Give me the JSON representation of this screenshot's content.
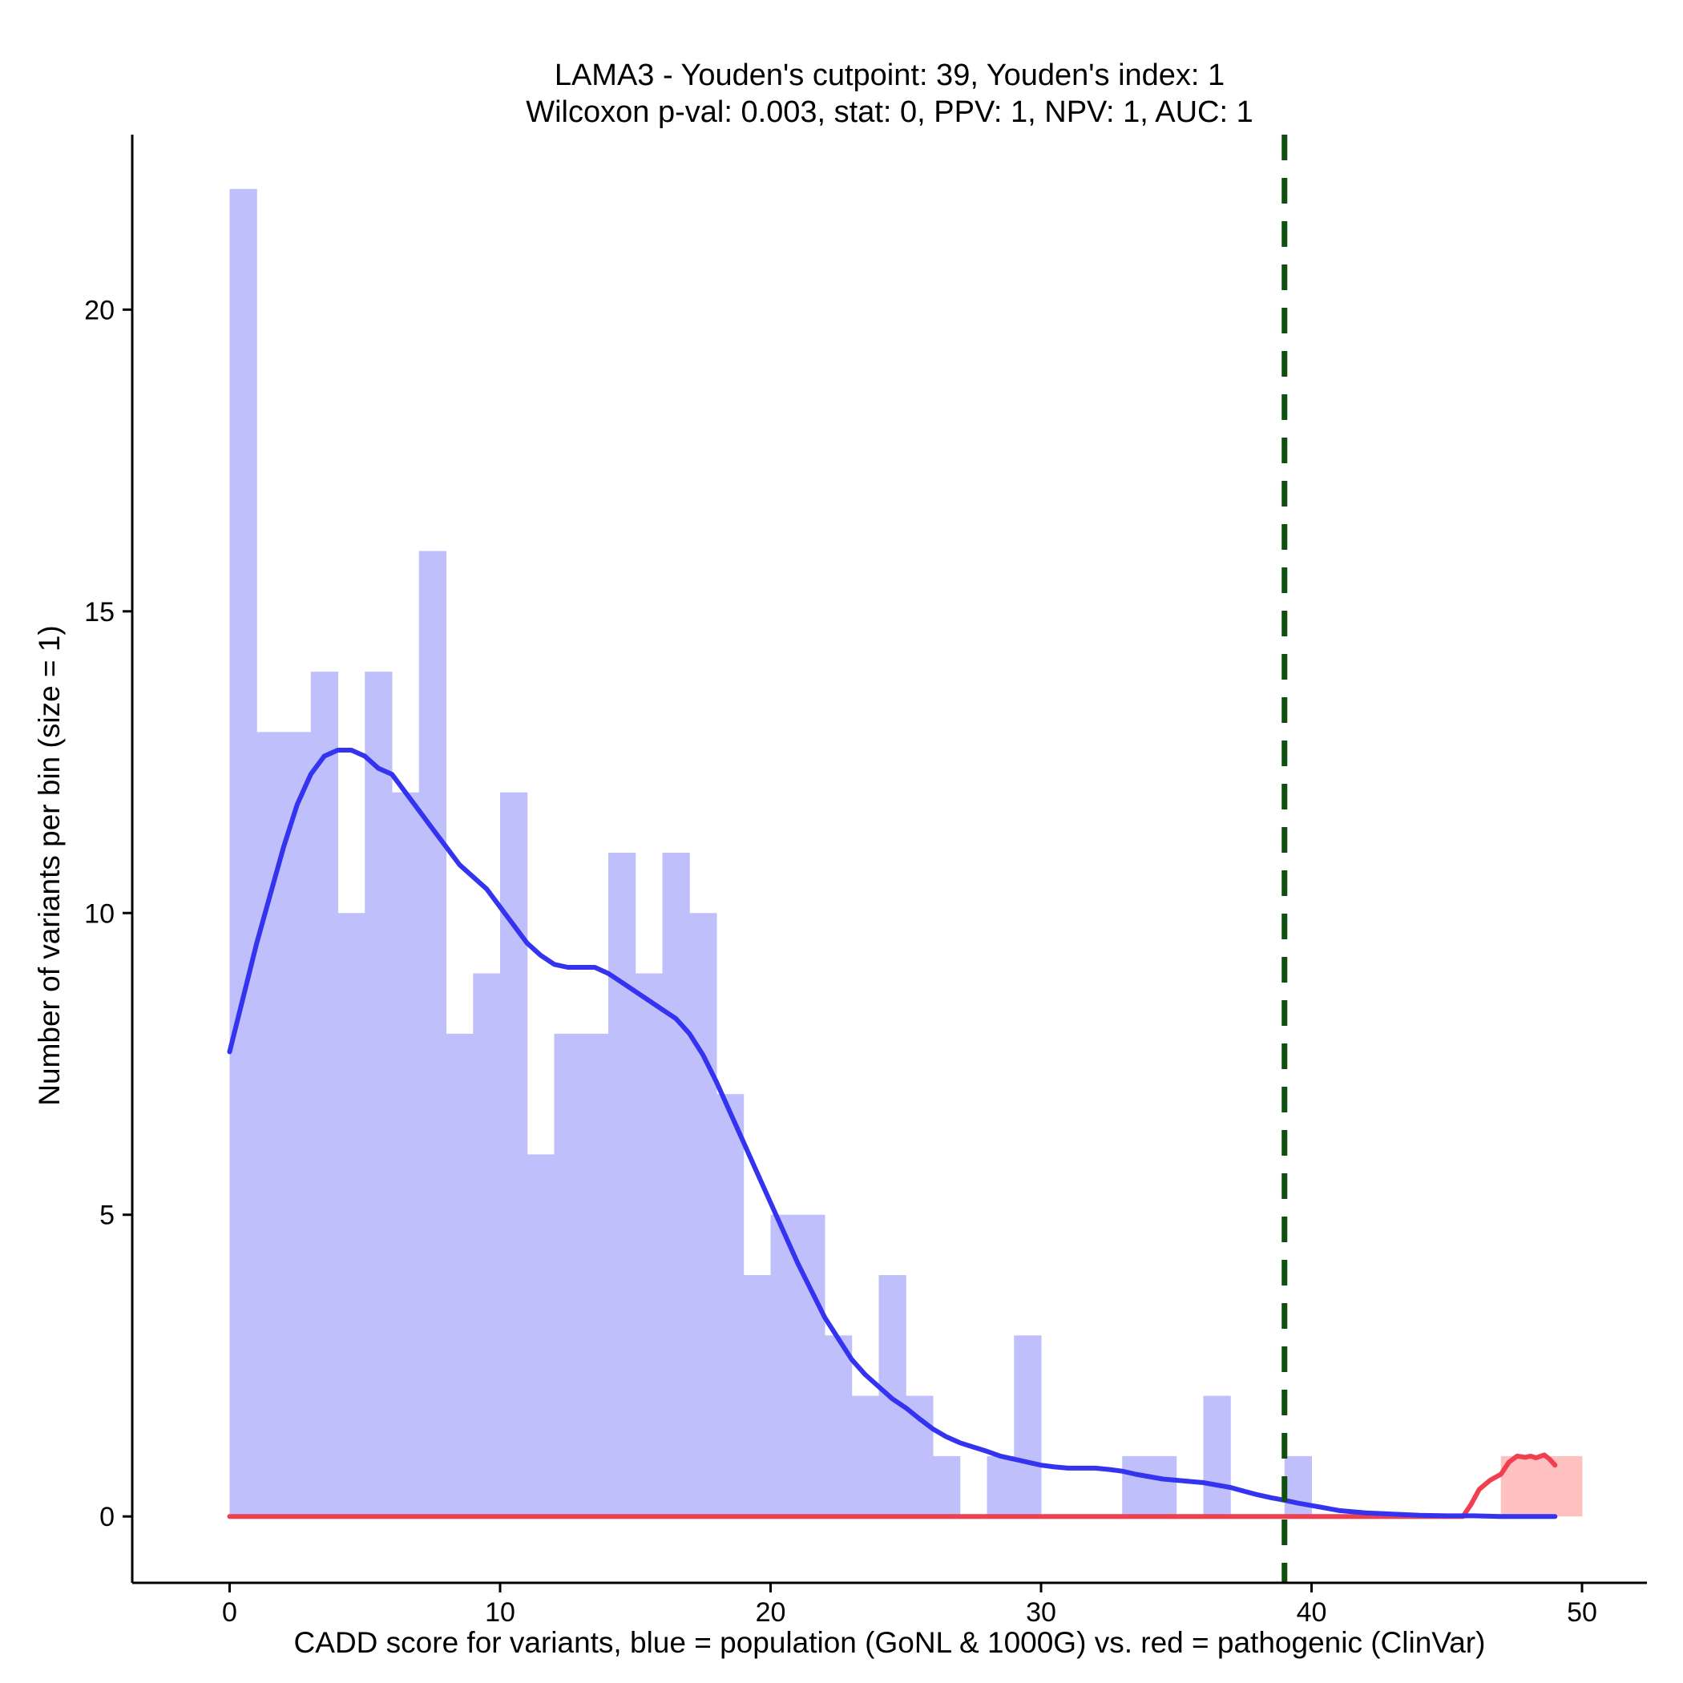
{
  "chart_data": {
    "type": "histogram",
    "title_line1": "LAMA3 - Youden's cutpoint: 39, Youden's index: 1",
    "title_line2": "Wilcoxon p-val: 0.003, stat: 0, PPV: 1, NPV: 1, AUC: 1",
    "xlabel": "CADD score for variants, blue = population (GoNL & 1000G) vs. red = pathogenic (ClinVar)",
    "ylabel": "Number of variants per bin (size = 1)",
    "xlim": [
      -3.6,
      52.4
    ],
    "ylim": [
      -1.1,
      22.9
    ],
    "x_ticks": [
      0,
      10,
      20,
      30,
      40,
      50
    ],
    "y_ticks": [
      0,
      5,
      10,
      15,
      20
    ],
    "bin_width": 1,
    "cutpoint": 39,
    "colors": {
      "population_bar": "#bfbffb",
      "pathogenic_bar": "#ffc0c0",
      "population_line": "#3333f0",
      "pathogenic_line": "#f0404f",
      "cutpoint_line": "#0f4f0f"
    },
    "series": [
      {
        "name": "population",
        "bins": [
          {
            "x": 0,
            "count": 22
          },
          {
            "x": 1,
            "count": 13
          },
          {
            "x": 2,
            "count": 13
          },
          {
            "x": 3,
            "count": 14
          },
          {
            "x": 4,
            "count": 10
          },
          {
            "x": 5,
            "count": 14
          },
          {
            "x": 6,
            "count": 12
          },
          {
            "x": 7,
            "count": 16
          },
          {
            "x": 8,
            "count": 8
          },
          {
            "x": 9,
            "count": 9
          },
          {
            "x": 10,
            "count": 12
          },
          {
            "x": 11,
            "count": 6
          },
          {
            "x": 12,
            "count": 8
          },
          {
            "x": 13,
            "count": 8
          },
          {
            "x": 14,
            "count": 11
          },
          {
            "x": 15,
            "count": 9
          },
          {
            "x": 16,
            "count": 11
          },
          {
            "x": 17,
            "count": 10
          },
          {
            "x": 18,
            "count": 7
          },
          {
            "x": 19,
            "count": 4
          },
          {
            "x": 20,
            "count": 5
          },
          {
            "x": 21,
            "count": 5
          },
          {
            "x": 22,
            "count": 3
          },
          {
            "x": 23,
            "count": 2
          },
          {
            "x": 24,
            "count": 4
          },
          {
            "x": 25,
            "count": 2
          },
          {
            "x": 26,
            "count": 1
          },
          {
            "x": 28,
            "count": 1
          },
          {
            "x": 29,
            "count": 3
          },
          {
            "x": 33,
            "count": 1
          },
          {
            "x": 34,
            "count": 1
          },
          {
            "x": 36,
            "count": 2
          },
          {
            "x": 39,
            "count": 1
          }
        ],
        "density": [
          [
            0,
            7.7
          ],
          [
            0.5,
            8.6
          ],
          [
            1,
            9.5
          ],
          [
            1.5,
            10.3
          ],
          [
            2,
            11.1
          ],
          [
            2.5,
            11.8
          ],
          [
            3,
            12.3
          ],
          [
            3.5,
            12.6
          ],
          [
            4,
            12.7
          ],
          [
            4.5,
            12.7
          ],
          [
            5,
            12.6
          ],
          [
            5.5,
            12.4
          ],
          [
            6,
            12.3
          ],
          [
            6.5,
            12.0
          ],
          [
            7,
            11.7
          ],
          [
            7.5,
            11.4
          ],
          [
            8,
            11.1
          ],
          [
            8.5,
            10.8
          ],
          [
            9,
            10.6
          ],
          [
            9.5,
            10.4
          ],
          [
            10,
            10.1
          ],
          [
            10.5,
            9.8
          ],
          [
            11,
            9.5
          ],
          [
            11.5,
            9.3
          ],
          [
            12,
            9.15
          ],
          [
            12.5,
            9.1
          ],
          [
            13,
            9.1
          ],
          [
            13.5,
            9.1
          ],
          [
            14,
            9.0
          ],
          [
            14.5,
            8.85
          ],
          [
            15,
            8.7
          ],
          [
            15.5,
            8.55
          ],
          [
            16,
            8.4
          ],
          [
            16.5,
            8.25
          ],
          [
            17,
            8.0
          ],
          [
            17.5,
            7.65
          ],
          [
            18,
            7.2
          ],
          [
            18.5,
            6.7
          ],
          [
            19,
            6.2
          ],
          [
            19.5,
            5.7
          ],
          [
            20,
            5.2
          ],
          [
            20.5,
            4.7
          ],
          [
            21,
            4.2
          ],
          [
            21.5,
            3.75
          ],
          [
            22,
            3.3
          ],
          [
            22.5,
            2.95
          ],
          [
            23,
            2.6
          ],
          [
            23.5,
            2.35
          ],
          [
            24,
            2.15
          ],
          [
            24.5,
            1.95
          ],
          [
            25,
            1.8
          ],
          [
            25.5,
            1.62
          ],
          [
            26,
            1.45
          ],
          [
            26.5,
            1.32
          ],
          [
            27,
            1.22
          ],
          [
            27.5,
            1.15
          ],
          [
            28,
            1.08
          ],
          [
            28.5,
            1.0
          ],
          [
            29,
            0.95
          ],
          [
            29.5,
            0.9
          ],
          [
            30,
            0.85
          ],
          [
            30.5,
            0.82
          ],
          [
            31,
            0.8
          ],
          [
            31.5,
            0.8
          ],
          [
            32,
            0.8
          ],
          [
            32.5,
            0.78
          ],
          [
            33,
            0.75
          ],
          [
            33.5,
            0.7
          ],
          [
            34,
            0.66
          ],
          [
            34.5,
            0.62
          ],
          [
            35,
            0.6
          ],
          [
            35.5,
            0.58
          ],
          [
            36,
            0.56
          ],
          [
            36.5,
            0.52
          ],
          [
            37,
            0.48
          ],
          [
            37.5,
            0.42
          ],
          [
            38,
            0.36
          ],
          [
            38.5,
            0.31
          ],
          [
            39,
            0.27
          ],
          [
            39.5,
            0.22
          ],
          [
            40,
            0.18
          ],
          [
            40.5,
            0.14
          ],
          [
            41,
            0.1
          ],
          [
            41.5,
            0.08
          ],
          [
            42,
            0.06
          ],
          [
            43,
            0.04
          ],
          [
            44,
            0.02
          ],
          [
            45,
            0.01
          ],
          [
            46,
            0.01
          ],
          [
            47,
            0.0
          ],
          [
            48,
            0.0
          ],
          [
            49,
            0.0
          ]
        ]
      },
      {
        "name": "pathogenic",
        "bins": [
          {
            "x": 47,
            "count": 1
          },
          {
            "x": 48,
            "count": 1
          },
          {
            "x": 49,
            "count": 1
          }
        ],
        "density": [
          [
            0,
            0
          ],
          [
            10,
            0
          ],
          [
            20,
            0
          ],
          [
            30,
            0
          ],
          [
            40,
            0
          ],
          [
            45.6,
            0
          ],
          [
            45.9,
            0.2
          ],
          [
            46.2,
            0.45
          ],
          [
            46.6,
            0.6
          ],
          [
            47.0,
            0.7
          ],
          [
            47.3,
            0.9
          ],
          [
            47.6,
            1.0
          ],
          [
            47.9,
            0.98
          ],
          [
            48.1,
            1.0
          ],
          [
            48.3,
            0.97
          ],
          [
            48.6,
            1.02
          ],
          [
            48.8,
            0.95
          ],
          [
            49.0,
            0.85
          ]
        ]
      }
    ]
  }
}
